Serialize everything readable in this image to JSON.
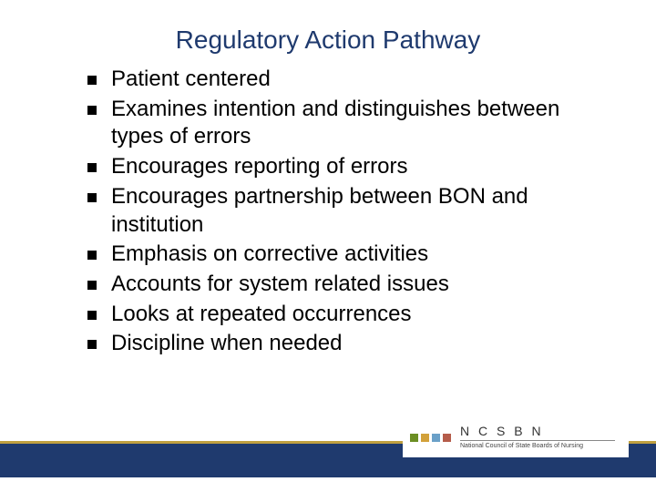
{
  "slide": {
    "title": "Regulatory Action Pathway",
    "title_color": "#1f3a6e",
    "title_fontsize": 28,
    "background_color": "#ffffff",
    "bullets": [
      "Patient centered",
      "Examines intention and distinguishes between types of errors",
      "Encourages reporting of errors",
      "Encourages partnership between BON and institution",
      "Emphasis on corrective activities",
      "Accounts for system related issues",
      "Looks at repeated occurrences",
      "Discipline when needed"
    ],
    "bullet_fontsize": 24,
    "bullet_color": "#000000",
    "bullet_marker": "square",
    "bullet_marker_color": "#000000"
  },
  "footer": {
    "band_color": "#1f3a6e",
    "band_accent_color": "#c0a040",
    "logo": {
      "squares": [
        "#6b8e23",
        "#d2a13a",
        "#6aa0c8",
        "#b55c4a"
      ],
      "main_text": "N C S B N",
      "sub_text": "National Council of State Boards of Nursing"
    }
  }
}
